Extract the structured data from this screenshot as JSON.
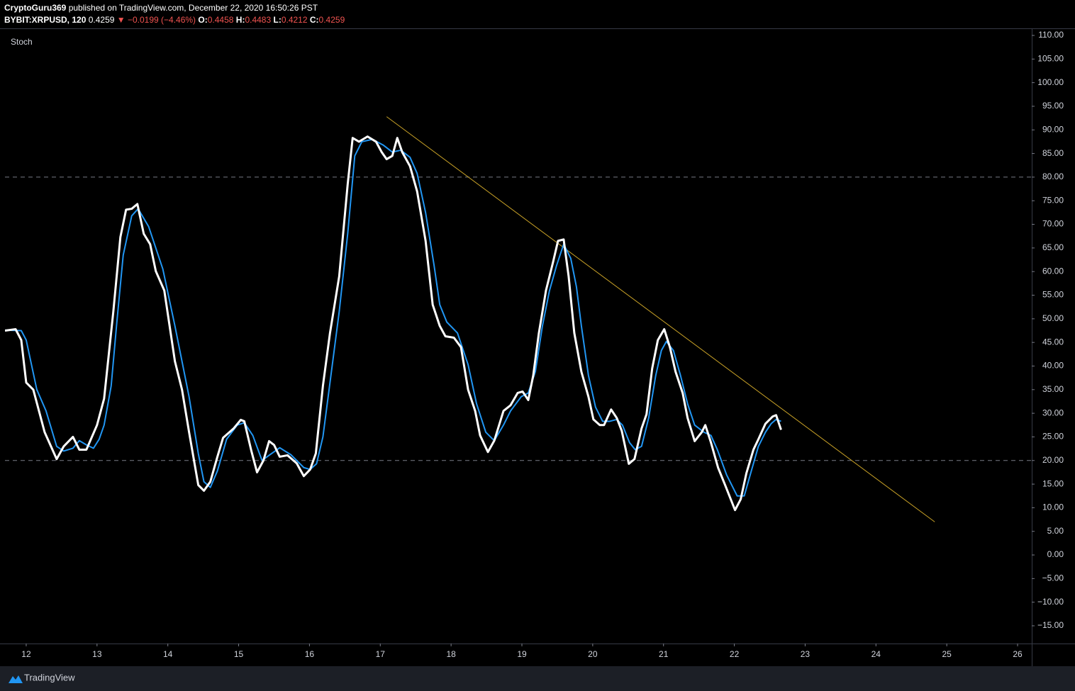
{
  "header": {
    "author": "CryptoGuru369",
    "published": "published on TradingView.com, December 22, 2020 16:50:26 PST",
    "symbol": "BYBIT:XRPUSD, 120",
    "price": "0.4259",
    "change": "▼ −0.0199 (−4.46%)",
    "ohlc": [
      {
        "label": "O:",
        "value": "0.4458"
      },
      {
        "label": "H:",
        "value": "0.4483"
      },
      {
        "label": "L:",
        "value": "0.4212"
      },
      {
        "label": "C:",
        "value": "0.4259"
      }
    ]
  },
  "footer": {
    "brand": "TradingView"
  },
  "chart_data": {
    "type": "line",
    "title": "Stoch",
    "xlim": [
      11.7,
      26.2
    ],
    "ylim": [
      -18.75,
      111.5
    ],
    "xticks": [
      12,
      13,
      14,
      15,
      16,
      17,
      18,
      19,
      20,
      21,
      22,
      23,
      24,
      25,
      26
    ],
    "yticks": [
      {
        "value": 110,
        "label": "110.00"
      },
      {
        "value": 105,
        "label": "105.00"
      },
      {
        "value": 100,
        "label": "100.00"
      },
      {
        "value": 95,
        "label": "95.00"
      },
      {
        "value": 90,
        "label": "90.00"
      },
      {
        "value": 85,
        "label": "85.00"
      },
      {
        "value": 80,
        "label": "80.00"
      },
      {
        "value": 75,
        "label": "75.00"
      },
      {
        "value": 70,
        "label": "70.00"
      },
      {
        "value": 65,
        "label": "65.00"
      },
      {
        "value": 60,
        "label": "60.00"
      },
      {
        "value": 55,
        "label": "55.00"
      },
      {
        "value": 50,
        "label": "50.00"
      },
      {
        "value": 45,
        "label": "45.00"
      },
      {
        "value": 40,
        "label": "40.00"
      },
      {
        "value": 35,
        "label": "35.00"
      },
      {
        "value": 30,
        "label": "30.00"
      },
      {
        "value": 25,
        "label": "25.00"
      },
      {
        "value": 20,
        "label": "20.00"
      },
      {
        "value": 15,
        "label": "15.00"
      },
      {
        "value": 10,
        "label": "10.00"
      },
      {
        "value": 5,
        "label": "5.00"
      },
      {
        "value": 0,
        "label": "0.00"
      },
      {
        "value": -5,
        "label": "−5.00"
      },
      {
        "value": -10,
        "label": "−10.00"
      },
      {
        "value": -15,
        "label": "−15.00"
      }
    ],
    "bands": [
      80,
      20
    ],
    "band_color": "#787b86",
    "trendline": {
      "x": [
        17.09,
        24.83
      ],
      "y": [
        92.8,
        7.0
      ],
      "color": "#c9a227"
    },
    "series": [
      {
        "color": "#2196f3",
        "x": [
          11.7,
          11.93,
          12.0,
          12.15,
          12.28,
          12.43,
          12.53,
          12.66,
          12.75,
          12.85,
          12.95,
          13.03,
          13.1,
          13.2,
          13.28,
          13.37,
          13.49,
          13.58,
          13.73,
          13.93,
          14.1,
          14.3,
          14.43,
          14.51,
          14.6,
          14.7,
          14.83,
          14.98,
          15.08,
          15.2,
          15.33,
          15.43,
          15.58,
          15.74,
          15.92,
          16.01,
          16.1,
          16.19,
          16.29,
          16.42,
          16.54,
          16.64,
          16.74,
          16.89,
          17.04,
          17.17,
          17.29,
          17.42,
          17.52,
          17.64,
          17.76,
          17.84,
          17.94,
          18.09,
          18.24,
          18.36,
          18.49,
          18.61,
          18.74,
          18.84,
          18.99,
          19.09,
          19.19,
          19.29,
          19.39,
          19.49,
          19.59,
          19.69,
          19.77,
          19.84,
          19.94,
          20.04,
          20.14,
          20.24,
          20.34,
          20.42,
          20.52,
          20.6,
          20.69,
          20.79,
          20.89,
          20.97,
          21.04,
          21.14,
          21.24,
          21.34,
          21.44,
          21.57,
          21.67,
          21.76,
          21.89,
          22.04,
          22.14,
          22.24,
          22.34,
          22.44,
          22.52,
          22.59,
          22.66
        ],
        "values": [
          47.6,
          47.5,
          45.5,
          35.0,
          30.5,
          23.0,
          22.0,
          22.6,
          24.2,
          23.3,
          22.6,
          24.5,
          27.5,
          35.8,
          49.3,
          63.5,
          71.8,
          73.3,
          69.5,
          60.5,
          48.5,
          33.5,
          21.5,
          15.5,
          14.3,
          17.8,
          24.5,
          27.5,
          28.0,
          25.3,
          20.0,
          21.1,
          22.7,
          21.2,
          18.5,
          18.1,
          19.3,
          25.0,
          36.5,
          51.5,
          68.0,
          84.5,
          87.5,
          88.0,
          86.8,
          85.3,
          85.7,
          84.2,
          80.8,
          72.5,
          61.3,
          53.0,
          49.3,
          47.0,
          40.3,
          32.0,
          26.0,
          24.2,
          27.5,
          30.5,
          33.5,
          34.3,
          38.8,
          48.5,
          56.0,
          61.3,
          65.8,
          62.8,
          56.8,
          48.5,
          38.0,
          31.3,
          28.3,
          28.3,
          28.7,
          27.5,
          23.8,
          22.3,
          23.0,
          29.0,
          38.0,
          43.3,
          45.2,
          43.3,
          38.0,
          32.0,
          27.5,
          26.0,
          25.3,
          22.3,
          17.0,
          12.5,
          12.5,
          17.8,
          23.0,
          26.0,
          27.8,
          28.7,
          28.3
        ]
      },
      {
        "color": "#ffffff",
        "x": [
          11.7,
          11.85,
          11.93,
          12.0,
          12.1,
          12.26,
          12.43,
          12.53,
          12.66,
          12.75,
          12.85,
          13.0,
          13.1,
          13.23,
          13.33,
          13.41,
          13.49,
          13.57,
          13.66,
          13.75,
          13.83,
          13.95,
          14.1,
          14.2,
          14.3,
          14.43,
          14.51,
          14.6,
          14.7,
          14.78,
          14.93,
          15.03,
          15.08,
          15.18,
          15.26,
          15.35,
          15.43,
          15.5,
          15.58,
          15.69,
          15.82,
          15.92,
          16.01,
          16.09,
          16.19,
          16.29,
          16.42,
          16.54,
          16.61,
          16.7,
          16.82,
          16.94,
          17.02,
          17.09,
          17.17,
          17.24,
          17.31,
          17.42,
          17.52,
          17.64,
          17.74,
          17.84,
          17.92,
          18.04,
          18.14,
          18.24,
          18.34,
          18.41,
          18.52,
          18.61,
          18.74,
          18.84,
          18.94,
          19.01,
          19.09,
          19.16,
          19.24,
          19.34,
          19.44,
          19.51,
          19.59,
          19.66,
          19.74,
          19.84,
          19.94,
          20.01,
          20.1,
          20.16,
          20.26,
          20.34,
          20.41,
          20.51,
          20.59,
          20.69,
          20.76,
          20.84,
          20.92,
          21.01,
          21.09,
          21.17,
          21.27,
          21.34,
          21.44,
          21.54,
          21.59,
          21.67,
          21.77,
          21.87,
          22.01,
          22.09,
          22.17,
          22.27,
          22.34,
          22.44,
          22.54,
          22.59,
          22.66
        ],
        "values": [
          47.5,
          47.8,
          45.5,
          36.5,
          35.0,
          26.0,
          20.3,
          23.0,
          25.0,
          22.3,
          22.3,
          27.5,
          33.1,
          51.5,
          67.3,
          73.1,
          73.3,
          74.3,
          68.0,
          65.8,
          60.1,
          56.0,
          41.0,
          35.0,
          26.0,
          14.8,
          13.6,
          15.5,
          20.8,
          24.8,
          26.8,
          28.6,
          28.3,
          22.0,
          17.5,
          20.0,
          24.1,
          23.3,
          20.8,
          21.1,
          19.4,
          16.7,
          18.1,
          21.5,
          35.8,
          47.0,
          59.0,
          78.5,
          88.3,
          87.5,
          88.6,
          87.5,
          85.3,
          83.8,
          84.5,
          88.3,
          85.3,
          82.3,
          77.0,
          66.5,
          53.0,
          48.5,
          46.3,
          46.0,
          44.0,
          35.0,
          30.5,
          25.3,
          21.8,
          24.2,
          30.5,
          31.7,
          34.3,
          34.6,
          32.8,
          38.0,
          47.0,
          56.0,
          62.0,
          66.5,
          66.8,
          59.0,
          47.0,
          38.8,
          33.5,
          28.7,
          27.5,
          27.5,
          30.8,
          29.0,
          26.3,
          19.3,
          20.3,
          26.8,
          29.8,
          39.5,
          45.5,
          47.8,
          44.0,
          38.8,
          34.3,
          29.0,
          24.1,
          26.0,
          27.5,
          23.8,
          18.5,
          14.8,
          9.5,
          11.8,
          17.3,
          22.3,
          24.5,
          27.8,
          29.3,
          29.6,
          26.5
        ]
      }
    ]
  }
}
